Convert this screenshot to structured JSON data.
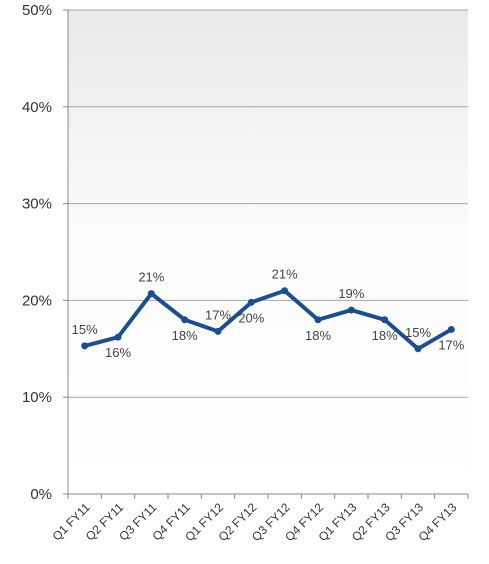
{
  "chart_data": {
    "type": "line",
    "categories": [
      "Q1 FY11",
      "Q2 FY11",
      "Q3 FY11",
      "Q4 FY11",
      "Q1 FY12",
      "Q2 FY12",
      "Q3 FY12",
      "Q4 FY12",
      "Q1 FY13",
      "Q2 FY13",
      "Q3 FY13",
      "Q4 FY13"
    ],
    "series": [
      {
        "values": [
          15.3,
          16.2,
          20.7,
          18.0,
          16.8,
          19.8,
          21.0,
          18.0,
          19.0,
          18.0,
          15.0,
          17.0
        ],
        "labels": [
          "15%",
          "16%",
          "21%",
          "18%",
          "17%",
          "20%",
          "21%",
          "18%",
          "19%",
          "18%",
          "15%",
          "17%"
        ],
        "color": "#1c4f8c"
      }
    ],
    "title": "",
    "xlabel": "",
    "ylabel": "",
    "ylim": [
      0,
      50
    ],
    "yticks": [
      0,
      10,
      20,
      30,
      40,
      50
    ],
    "ytick_labels": [
      "0%",
      "10%",
      "20%",
      "30%",
      "40%",
      "50%"
    ],
    "grid": true,
    "legend": "none"
  }
}
